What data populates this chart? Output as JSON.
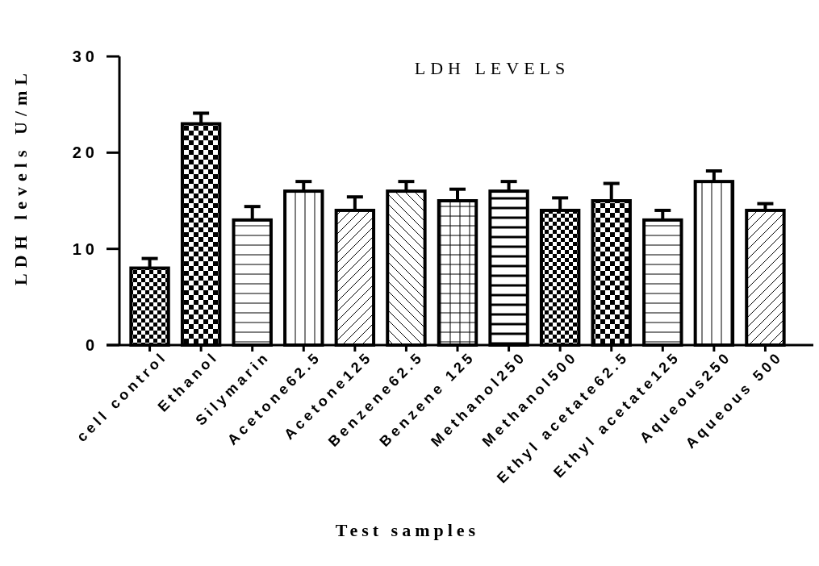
{
  "chart_data": {
    "type": "bar",
    "title": "LDH LEVELS",
    "xlabel": "Test samples",
    "ylabel": "LDH levels U/mL",
    "categories": [
      "cell control",
      "Ethanol",
      "Silymarin",
      "Acetone62.5",
      "Acetone125",
      "Benzene62.5",
      "Benzene 125",
      "Methanol250",
      "Methanol500",
      "Ethyl acetate62.5",
      "Ethyl acetate125",
      "Aqueous250",
      "Aqueous 500"
    ],
    "values": [
      8,
      23,
      13,
      16,
      14,
      16,
      15,
      16,
      14,
      15,
      13,
      17,
      14
    ],
    "errors": [
      1.0,
      1.1,
      1.4,
      1.0,
      1.4,
      1.0,
      1.2,
      1.0,
      1.3,
      1.8,
      1.0,
      1.1,
      0.7
    ],
    "color": "#000000",
    "ylim": [
      0,
      30
    ],
    "yticks": [
      0,
      10,
      20,
      30
    ],
    "grid": false
  }
}
